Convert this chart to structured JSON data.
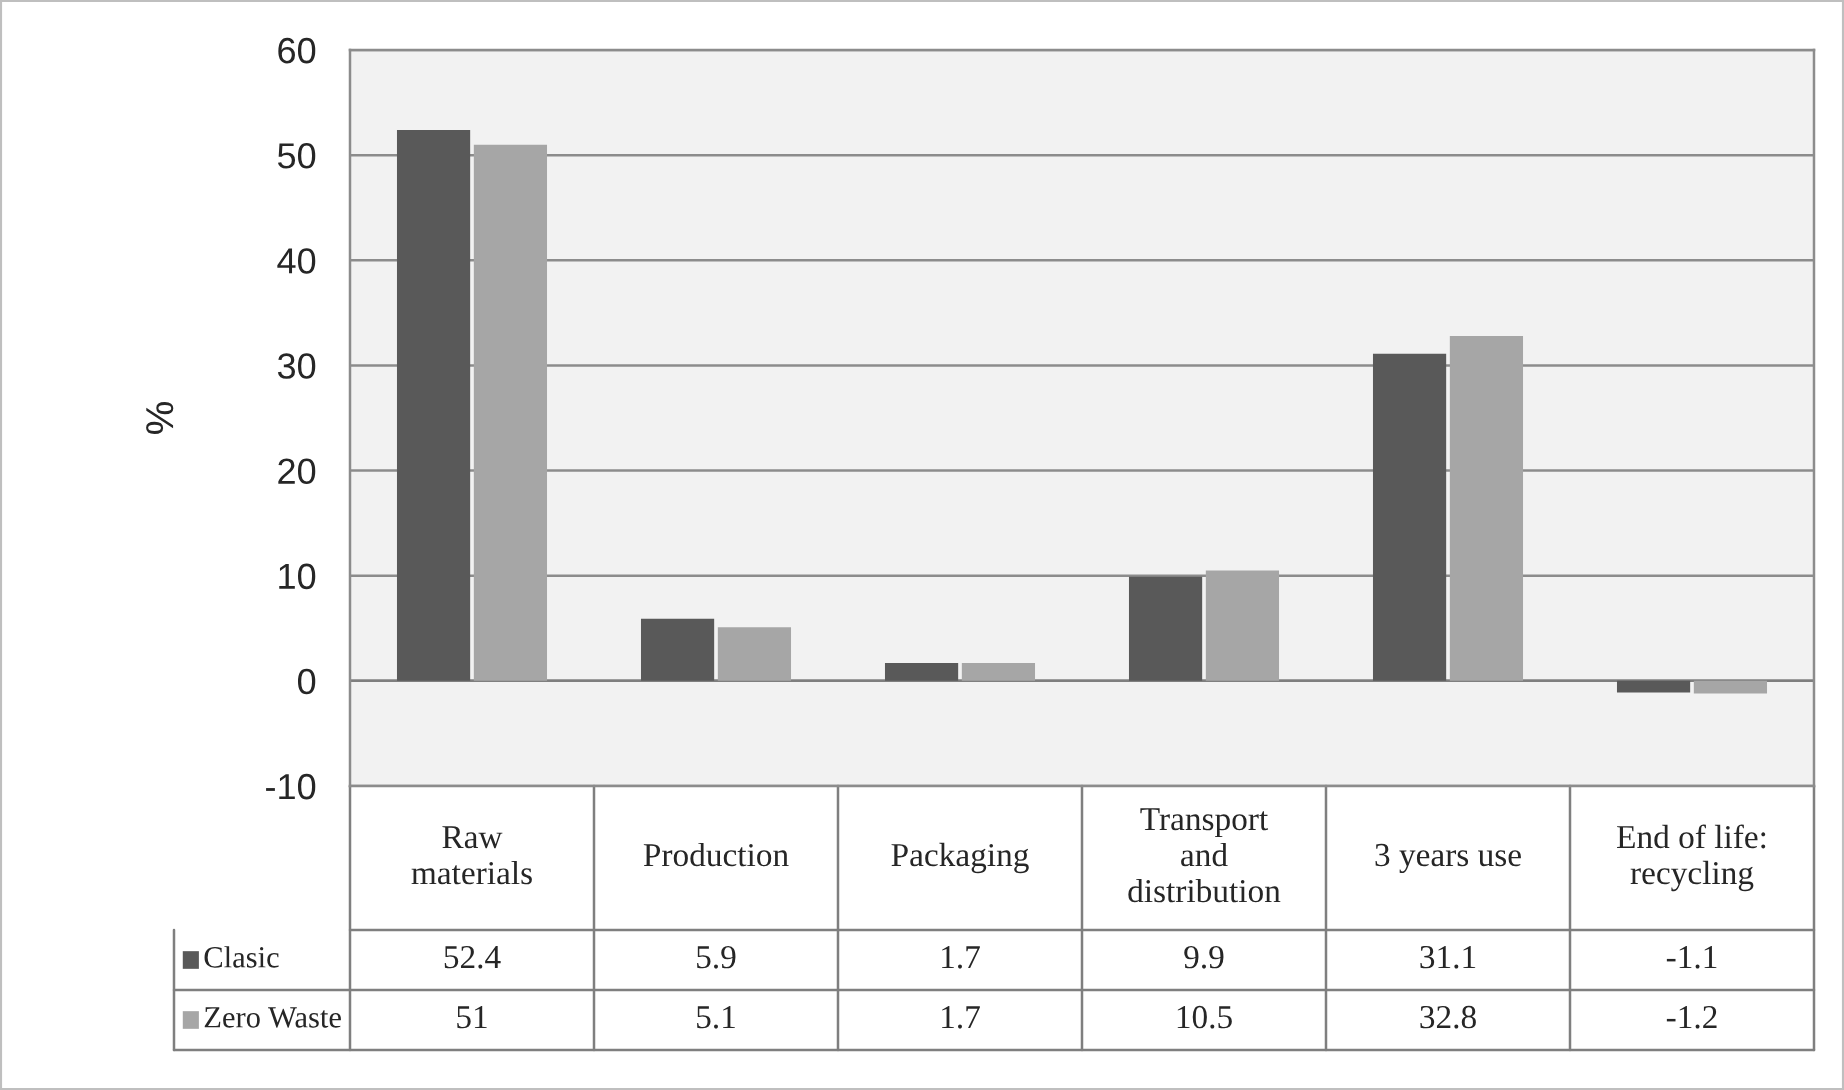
{
  "chart_data": {
    "type": "bar",
    "ylabel": "%",
    "categories": [
      "Raw\nmaterials",
      "Production",
      "Packaging",
      "Transport\nand\ndistribution",
      "3 years use",
      "End of life:\nrecycling"
    ],
    "series": [
      {
        "name": "Clasic",
        "color": "#595959",
        "values": [
          52.4,
          5.9,
          1.7,
          9.9,
          31.1,
          -1.1
        ]
      },
      {
        "name": "Zero Waste",
        "color": "#a6a6a6",
        "values": [
          51,
          5.1,
          1.7,
          10.5,
          32.8,
          -1.2
        ]
      }
    ],
    "ylim": [
      -10,
      60
    ],
    "yticks": [
      -10,
      0,
      10,
      20,
      30,
      40,
      50,
      60
    ],
    "grid": "y",
    "data_labels": true,
    "legend": "bottom"
  }
}
